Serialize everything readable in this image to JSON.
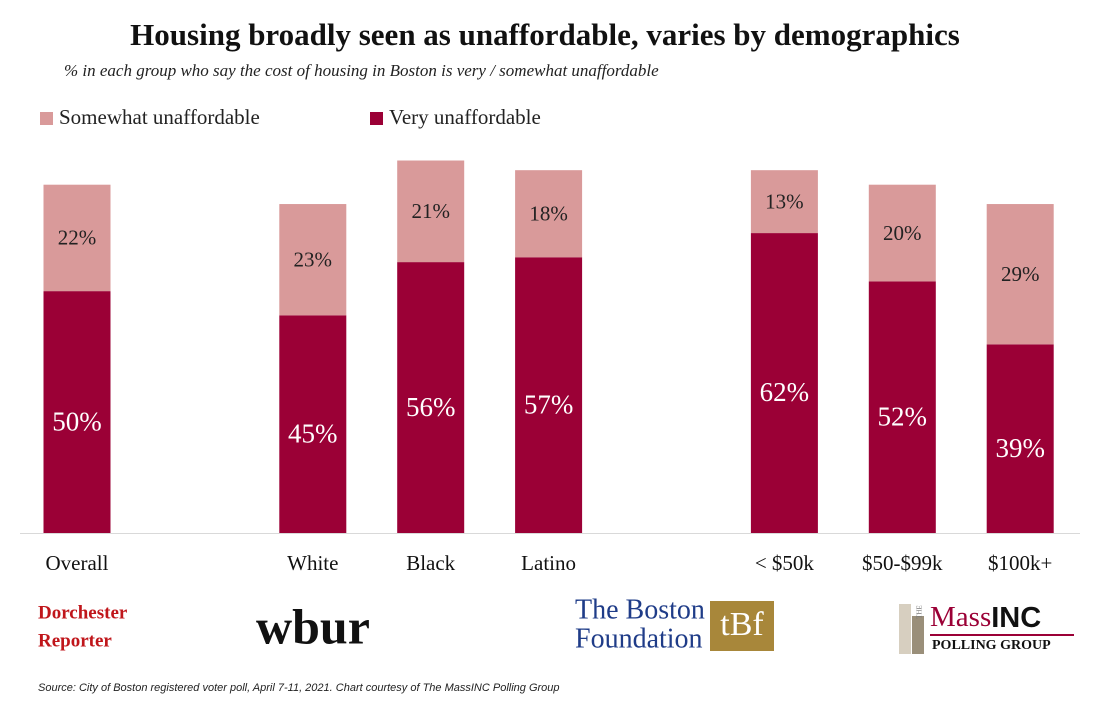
{
  "chart_data": {
    "type": "stacked_bar",
    "title": "Housing broadly seen as unaffordable, varies by demographics",
    "subtitle": "% in each group who say the cost of housing in Boston is very / somewhat unaffordable",
    "categories": [
      "Overall",
      null,
      "White",
      "Black",
      "Latino",
      null,
      "< $50k",
      "$50-$99k",
      "$100k+"
    ],
    "series": [
      {
        "name": "Somewhat unaffordable",
        "color": "#d99a9a",
        "values": [
          22,
          null,
          23,
          21,
          18,
          null,
          13,
          20,
          29
        ],
        "value_labels": [
          "22%",
          null,
          "23%",
          "21%",
          "18%",
          null,
          "13%",
          "20%",
          "29%"
        ]
      },
      {
        "name": "Very unaffordable",
        "color": "#9b0036",
        "values": [
          50,
          null,
          45,
          56,
          57,
          null,
          62,
          52,
          39
        ],
        "value_labels": [
          "50%",
          null,
          "45%",
          "56%",
          "57%",
          null,
          "62%",
          "52%",
          "39%"
        ]
      }
    ],
    "ylim": [
      0,
      80
    ],
    "legend": "top-left",
    "source": "Source: City of Boston registered voter poll, April 7-11, 2021. Chart courtesy of The MassINC Polling Group"
  },
  "logos": {
    "dorchester": [
      "Dorchester",
      "Reporter"
    ],
    "wbur": "wbur",
    "boston_foundation": [
      "The Boston",
      "Foundation"
    ],
    "tbf": "tBf",
    "massinc": {
      "the": "THE",
      "mass": "Mass",
      "inc": "INC",
      "group": "POLLING GROUP"
    }
  }
}
